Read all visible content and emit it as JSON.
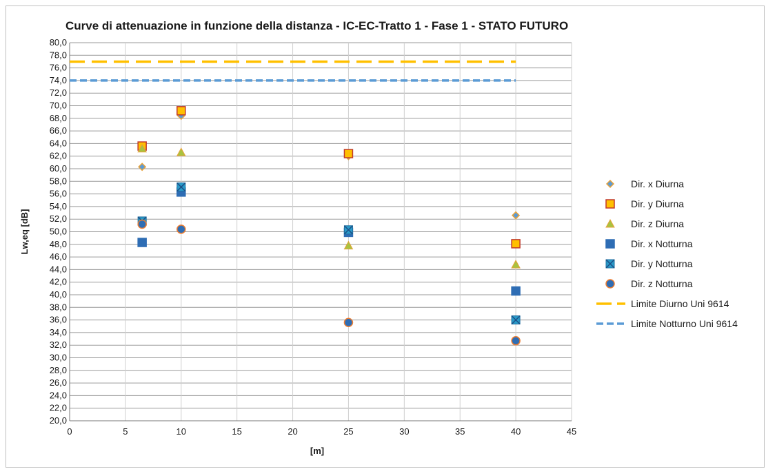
{
  "chart_data": {
    "type": "scatter",
    "title": "Curve di attenuazione in funzione della distanza - IC-EC-Tratto 1 - Fase 1 - STATO FUTURO",
    "xlabel": "[m]",
    "ylabel": "Lw,eq [dB]",
    "xlim": [
      0,
      45
    ],
    "ylim": [
      20,
      80
    ],
    "xticks": [
      0,
      5,
      10,
      15,
      20,
      25,
      30,
      35,
      40,
      45
    ],
    "yticks": [
      "20,0",
      "22,0",
      "24,0",
      "26,0",
      "28,0",
      "30,0",
      "32,0",
      "34,0",
      "36,0",
      "38,0",
      "40,0",
      "42,0",
      "44,0",
      "46,0",
      "48,0",
      "50,0",
      "52,0",
      "54,0",
      "56,0",
      "58,0",
      "60,0",
      "62,0",
      "64,0",
      "66,0",
      "68,0",
      "70,0",
      "72,0",
      "74,0",
      "76,0",
      "78,0",
      "80,0"
    ],
    "grid": "both",
    "legend_position": "right",
    "series": [
      {
        "name": "Dir. x Diurna",
        "marker": "diamond",
        "color": "#5B9BD5",
        "edge": "#E8A23A",
        "x": [
          6.5,
          10,
          25,
          40
        ],
        "y": [
          60.3,
          68.4,
          62.0,
          52.6
        ]
      },
      {
        "name": "Dir. y Diurna",
        "marker": "square",
        "color": "#FFC000",
        "edge": "#C0392B",
        "x": [
          6.5,
          10,
          25,
          40
        ],
        "y": [
          63.6,
          69.2,
          62.4,
          48.1
        ]
      },
      {
        "name": "Dir. z Diurna",
        "marker": "triangle",
        "color": "#A9C23F",
        "edge": "#E8A23A",
        "x": [
          6.5,
          10,
          25,
          40
        ],
        "y": [
          63.2,
          62.6,
          47.8,
          44.8
        ]
      },
      {
        "name": "Dir. x Notturna",
        "marker": "square",
        "color": "#2E6DB4",
        "edge": "#2E6DB4",
        "x": [
          6.5,
          10,
          25,
          40
        ],
        "y": [
          48.3,
          56.3,
          49.9,
          40.6
        ]
      },
      {
        "name": "Dir. y Notturna",
        "marker": "star-square",
        "color": "#2A9BC9",
        "edge": "#2A9BC9",
        "x": [
          6.5,
          10,
          25,
          40
        ],
        "y": [
          51.7,
          57.1,
          50.3,
          36.0
        ]
      },
      {
        "name": "Dir. z Notturna",
        "marker": "circle",
        "color": "#2E6DB4",
        "edge": "#ED7D31",
        "x": [
          6.5,
          10,
          25,
          40
        ],
        "y": [
          51.2,
          50.4,
          35.6,
          32.7
        ]
      },
      {
        "name": "Limite Diurno Uni 9614",
        "marker": "line",
        "dash": "long",
        "color": "#FFC000",
        "x": [
          0,
          40
        ],
        "y": [
          77,
          77
        ]
      },
      {
        "name": "Limite Notturno Uni 9614",
        "marker": "line",
        "dash": "short",
        "color": "#5B9BD5",
        "x": [
          0,
          40
        ],
        "y": [
          74,
          74
        ]
      }
    ]
  }
}
